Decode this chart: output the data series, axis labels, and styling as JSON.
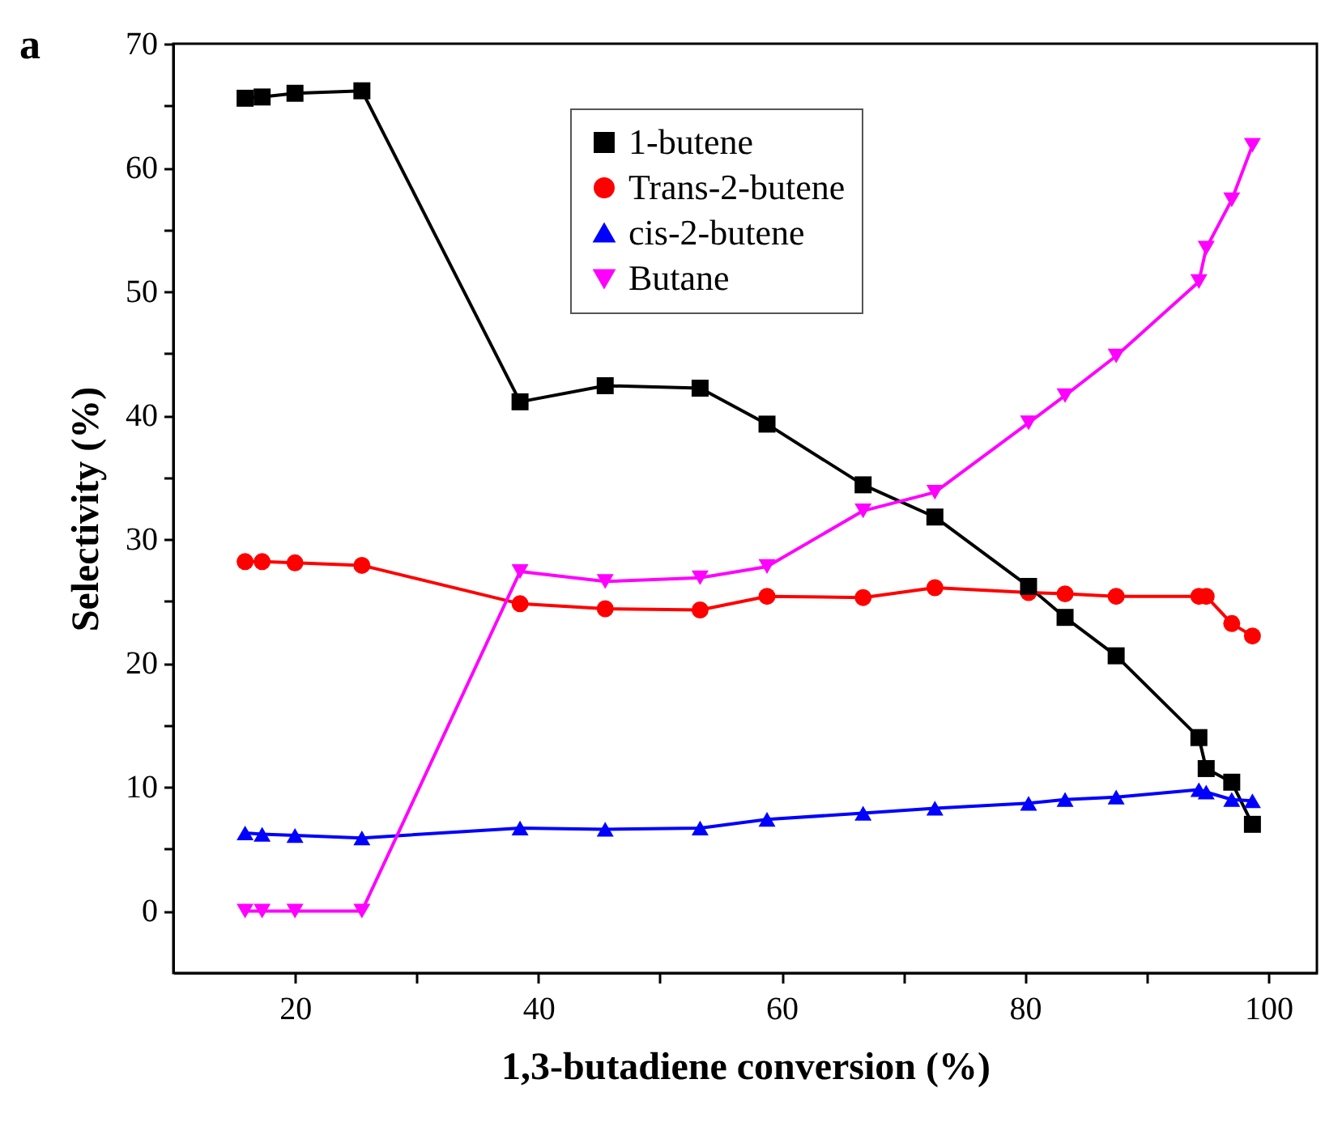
{
  "chart_data": {
    "type": "line",
    "xlabel": "1,3-butadiene conversion (%)",
    "ylabel": "Selectivity (%)",
    "annotations": [
      "a"
    ],
    "x": [
      15.9,
      17.3,
      20,
      25.5,
      38.5,
      45.5,
      53.3,
      58.8,
      66.7,
      72.6,
      80.3,
      83.3,
      87.5,
      94.3,
      94.9,
      97,
      98.7
    ],
    "series": [
      {
        "name": "1-butene",
        "color": "#000000",
        "marker": "square",
        "values": [
          65.6,
          65.7,
          66.0,
          66.2,
          41.1,
          42.4,
          42.2,
          39.3,
          34.4,
          31.8,
          26.2,
          23.7,
          20.6,
          14.0,
          11.5,
          10.4,
          7.0
        ]
      },
      {
        "name": "Trans-2-butene",
        "color": "#ff0000",
        "marker": "circle",
        "values": [
          28.2,
          28.2,
          28.1,
          27.9,
          24.8,
          24.4,
          24.3,
          25.4,
          25.3,
          26.1,
          25.7,
          25.6,
          25.4,
          25.4,
          25.4,
          23.2,
          22.2
        ]
      },
      {
        "name": "cis-2-butene",
        "color": "#0000ff",
        "marker": "triangle",
        "values": [
          6.3,
          6.2,
          6.1,
          5.9,
          6.7,
          6.6,
          6.7,
          7.4,
          7.9,
          8.3,
          8.7,
          9.0,
          9.2,
          9.8,
          9.6,
          9.0,
          8.9
        ]
      },
      {
        "name": "Butane",
        "color": "#ff00ff",
        "marker": "triangle-down",
        "values": [
          0,
          0,
          0,
          0,
          27.4,
          26.6,
          26.9,
          27.8,
          32.3,
          33.8,
          39.4,
          41.6,
          44.8,
          50.8,
          53.5,
          57.4,
          61.8
        ]
      }
    ],
    "xlim": [
      10,
      104
    ],
    "xticks": [
      20,
      {
        "value": 30,
        "label": null
      },
      40,
      {
        "value": 50,
        "label": null
      },
      60,
      {
        "value": 70,
        "label": null
      },
      80,
      {
        "value": 90,
        "label": null
      },
      100
    ],
    "ylim": [
      -5,
      70
    ],
    "yticks": [
      0,
      {
        "value": 5,
        "label": null
      },
      10,
      {
        "value": 15,
        "label": null
      },
      20,
      {
        "value": 25,
        "label": null
      },
      30,
      {
        "value": 35,
        "label": null
      },
      40,
      {
        "value": 45,
        "label": null
      },
      50,
      {
        "value": 55,
        "label": null
      },
      60,
      {
        "value": 65,
        "label": null
      },
      70
    ],
    "grid": false,
    "legend": "top right",
    "line_style": "solid"
  }
}
